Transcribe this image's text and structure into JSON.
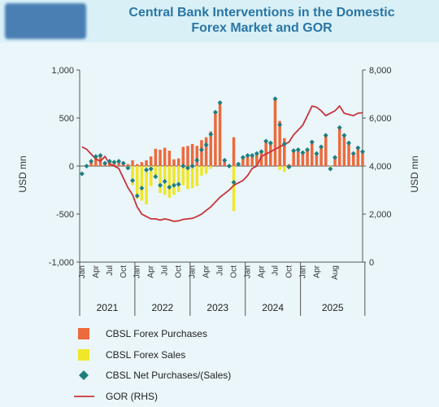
{
  "header": {
    "title_line1": "Central Bank Interventions in the Domestic",
    "title_line2": "Forex Market and GOR",
    "logo_icon": "institution-logo-icon"
  },
  "colors": {
    "purchases": "#ec6a3c",
    "sales": "#f0e62a",
    "net": "#1f7f80",
    "gor": "#c8343a",
    "background": "#eaf6fa",
    "title": "#2a76a6"
  },
  "chart_data": {
    "type": "bar",
    "title": "Central Bank Interventions in the Domestic Forex Market and GOR",
    "ylabel": "USD mn",
    "y2label": "USD mn",
    "ylim": [
      -1000,
      1000
    ],
    "y2lim": [
      0,
      8000
    ],
    "yticks": [
      "1,000",
      "500",
      "0",
      "-500",
      "-1,000"
    ],
    "y2ticks": [
      "8,000",
      "6,000",
      "4,000",
      "2,000",
      "0"
    ],
    "month_ticks": [
      "Jan",
      "Apr",
      "Jul",
      "Oct",
      "Jan",
      "Apr",
      "Jul",
      "Oct",
      "Jan",
      "Apr",
      "Jul",
      "Oct",
      "Jan",
      "Apr",
      "Jul",
      "Oct",
      "Jan",
      "Apr",
      "Aug"
    ],
    "years": [
      "2021",
      "2022",
      "2023",
      "2024",
      "2025"
    ],
    "legend": [
      "CBSL Forex Purchases",
      "CBSL Forex Sales",
      "CBSL Net Purchases/(Sales)",
      "GOR (RHS)"
    ],
    "legend_position": "bottom",
    "series": [
      {
        "name": "CBSL Forex Purchases",
        "kind": "bar",
        "values": [
          0,
          0,
          50,
          100,
          110,
          30,
          50,
          40,
          50,
          30,
          20,
          60,
          20,
          40,
          60,
          100,
          180,
          170,
          190,
          160,
          70,
          80,
          200,
          210,
          230,
          210,
          270,
          300,
          360,
          560,
          660,
          60,
          0,
          300,
          20,
          90,
          110,
          110,
          130,
          150,
          260,
          240,
          690,
          470,
          290,
          20,
          160,
          170,
          140,
          170,
          250,
          130,
          200,
          320,
          0,
          90,
          400,
          320,
          240,
          130,
          190,
          150
        ]
      },
      {
        "name": "CBSL Forex Sales",
        "kind": "bar",
        "values": [
          0,
          0,
          0,
          0,
          0,
          0,
          0,
          0,
          0,
          0,
          -30,
          -200,
          -340,
          -360,
          -400,
          -210,
          -100,
          -280,
          -300,
          -330,
          -300,
          -270,
          -200,
          -240,
          -230,
          -210,
          -100,
          -80,
          -30,
          0,
          0,
          0,
          0,
          -470,
          0,
          0,
          0,
          0,
          0,
          0,
          0,
          0,
          0,
          -40,
          -60,
          -30,
          0,
          0,
          0,
          0,
          0,
          0,
          0,
          0,
          -30,
          0,
          0,
          0,
          0,
          0,
          0,
          0
        ]
      },
      {
        "name": "CBSL Net Purchases/(Sales)",
        "kind": "marker",
        "values": [
          -80,
          0,
          50,
          100,
          110,
          30,
          50,
          40,
          50,
          30,
          -20,
          -150,
          -310,
          -230,
          -40,
          -30,
          -110,
          -200,
          -160,
          -220,
          -200,
          -190,
          0,
          -20,
          0,
          60,
          170,
          220,
          330,
          560,
          660,
          60,
          0,
          -170,
          20,
          90,
          110,
          110,
          130,
          150,
          260,
          240,
          700,
          430,
          230,
          -10,
          160,
          170,
          140,
          170,
          250,
          130,
          200,
          320,
          -30,
          90,
          400,
          320,
          240,
          130,
          190,
          150
        ]
      },
      {
        "name": "GOR (RHS)",
        "kind": "line",
        "axis": "right",
        "values": [
          4800,
          4700,
          4500,
          4300,
          4200,
          4400,
          4100,
          4000,
          3900,
          3500,
          3100,
          2800,
          2300,
          2000,
          1900,
          1800,
          1800,
          1750,
          1800,
          1760,
          1700,
          1720,
          1780,
          1800,
          1820,
          1900,
          2000,
          2150,
          2300,
          2500,
          2700,
          2850,
          3000,
          3200,
          3300,
          3400,
          3600,
          3900,
          4000,
          4400,
          4500,
          4600,
          4700,
          4800,
          4900,
          5000,
          5300,
          5500,
          5700,
          6100,
          6500,
          6450,
          6300,
          6100,
          6200,
          6300,
          6500,
          6200,
          6150,
          6100,
          6200,
          6220
        ]
      }
    ]
  }
}
